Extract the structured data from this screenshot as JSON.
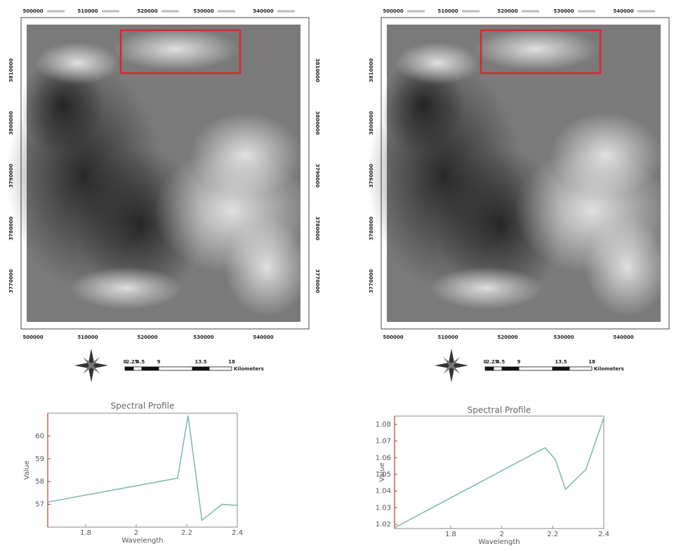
{
  "maps": {
    "x_labels": [
      "500000",
      "510000",
      "520000",
      "530000",
      "540000"
    ],
    "y_labels": [
      "3810000",
      "3800000",
      "3790000",
      "3780000",
      "3770000"
    ],
    "scale_labels": [
      "0",
      "2.25",
      "4.5",
      "9",
      "13.5",
      "18"
    ],
    "scale_unit": "Kilometers"
  },
  "chart_data": [
    {
      "type": "line",
      "title": "Spectral Profile",
      "x_label": "Wavelength",
      "y_label": "Value",
      "x": [
        1.65,
        2.164,
        2.205,
        2.26,
        2.34,
        2.4
      ],
      "series": [
        {
          "name": "Value",
          "color": "#7fbfa8",
          "values": [
            57.1,
            58.15,
            60.9,
            56.3,
            57.0,
            56.95
          ]
        }
      ],
      "xlim": [
        1.65,
        2.4
      ],
      "xticks": [
        1.8,
        2.0,
        2.2,
        2.4
      ],
      "ylim": [
        56.0,
        61.0
      ],
      "yticks": [
        57,
        58,
        59,
        60
      ]
    },
    {
      "type": "line",
      "title": "Spectral Profile",
      "x_label": "Wavelength",
      "y_label": "Value",
      "x": [
        1.58,
        2.17,
        2.21,
        2.25,
        2.33,
        2.4
      ],
      "series": [
        {
          "name": "Value",
          "color": "#7fbfa8",
          "values": [
            1.018,
            1.066,
            1.059,
            1.041,
            1.053,
            1.084
          ]
        }
      ],
      "xlim": [
        1.58,
        2.4
      ],
      "xticks": [
        1.8,
        2.0,
        2.2,
        2.4
      ],
      "ylim": [
        1.0175,
        1.085
      ],
      "yticks": [
        1.02,
        1.03,
        1.04,
        1.05,
        1.06,
        1.07,
        1.08
      ]
    }
  ]
}
